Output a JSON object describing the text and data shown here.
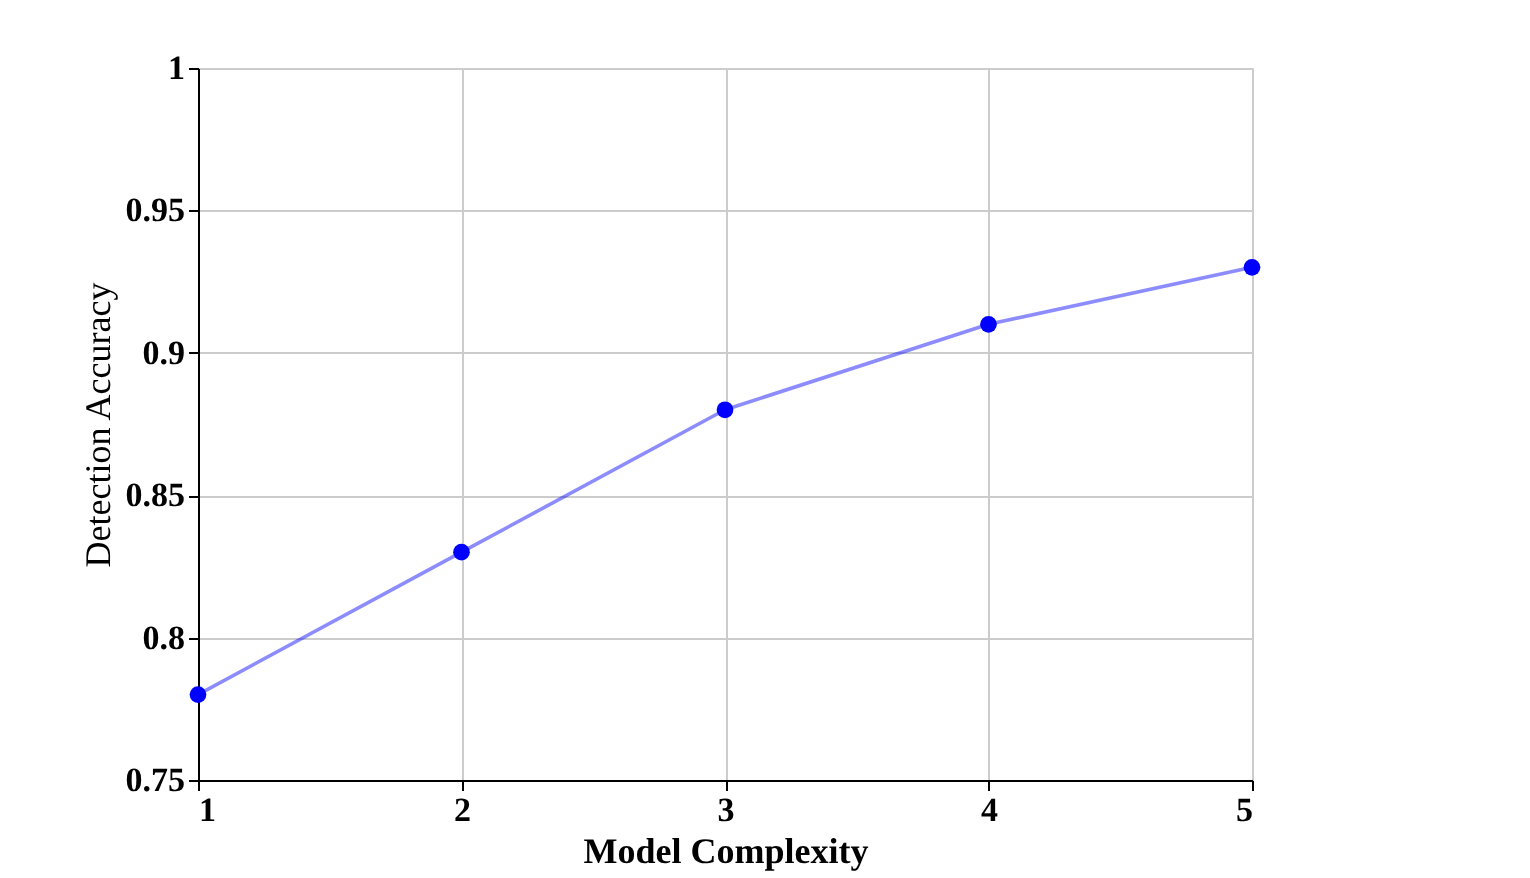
{
  "chart_data": {
    "type": "line",
    "xlabel": "Model Complexity",
    "ylabel": "Detection Accuracy",
    "x": [
      1,
      2,
      3,
      4,
      5
    ],
    "series": [
      {
        "color": "#0000ff",
        "values": [
          0.78,
          0.83,
          0.88,
          0.91,
          0.93
        ]
      }
    ],
    "xlim": [
      1,
      5
    ],
    "xticks": [
      1,
      2,
      3,
      4,
      5
    ],
    "ylim": [
      0.75,
      1
    ],
    "yticks": [
      0.75,
      0.8,
      0.85,
      0.9,
      0.95,
      1
    ],
    "grid": true,
    "marker": "circle",
    "line_style": "solid"
  }
}
